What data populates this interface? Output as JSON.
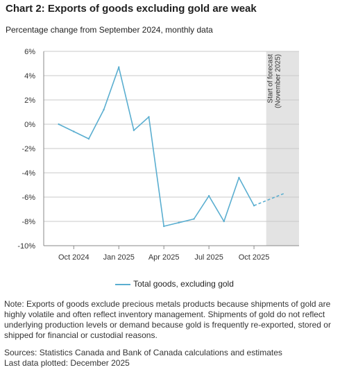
{
  "title": "Chart 2: Exports of goods excluding gold are weak",
  "subtitle": "Percentage change from September 2024, monthly data",
  "legend_label": "Total goods, excluding gold",
  "note": "Note: Exports of goods exclude precious metals products because shipments of gold are highly volatile and often reflect inventory management. Shipments of gold do not reflect underlying production levels or demand because gold is frequently re-exported, stored or shipped for financial or custodial reasons.",
  "sources": "Sources: Statistics Canada and Bank of Canada calculations and estimates",
  "last_data": "Last data plotted: December 2025",
  "colors": {
    "series": "#5aaed0",
    "forecast_shade": "#e3e3e3",
    "grid": "#c8c8c8",
    "axis": "#8a8a8a"
  },
  "chart_data": {
    "type": "line",
    "ylim": [
      -10,
      6
    ],
    "y_ticks": [
      6,
      4,
      2,
      0,
      -2,
      -4,
      -6,
      -8,
      -10
    ],
    "y_tick_labels": [
      "6%",
      "4%",
      "2%",
      "0%",
      "-2%",
      "-4%",
      "-6%",
      "-8%",
      "-10%"
    ],
    "x_range": [
      "2024-08",
      "2026-01"
    ],
    "x_ticks": [
      "2024-10",
      "2025-01",
      "2025-04",
      "2025-07",
      "2025-10"
    ],
    "x_tick_labels": [
      "Oct 2024",
      "Jan 2025",
      "Apr 2025",
      "Jul 2025",
      "Oct 2025"
    ],
    "forecast_start": "2025-11",
    "forecast_label_line1": "Start of forecast",
    "forecast_label_line2": "(November 2025)",
    "series": [
      {
        "name": "Total goods, excluding gold",
        "points": [
          {
            "x": "2024-09",
            "y": 0.0
          },
          {
            "x": "2024-10",
            "y": -0.6
          },
          {
            "x": "2024-11",
            "y": -1.2
          },
          {
            "x": "2024-12",
            "y": 1.2
          },
          {
            "x": "2025-01",
            "y": 4.7
          },
          {
            "x": "2025-02",
            "y": -0.5
          },
          {
            "x": "2025-03",
            "y": 0.6
          },
          {
            "x": "2025-04",
            "y": -8.4
          },
          {
            "x": "2025-05",
            "y": -8.1
          },
          {
            "x": "2025-06",
            "y": -7.8
          },
          {
            "x": "2025-07",
            "y": -5.9
          },
          {
            "x": "2025-08",
            "y": -8.0
          },
          {
            "x": "2025-09",
            "y": -4.4
          },
          {
            "x": "2025-10",
            "y": -6.7
          }
        ],
        "forecast_points": [
          {
            "x": "2025-10",
            "y": -6.7
          },
          {
            "x": "2025-11",
            "y": -6.2
          },
          {
            "x": "2025-12",
            "y": -5.7
          }
        ]
      }
    ]
  }
}
